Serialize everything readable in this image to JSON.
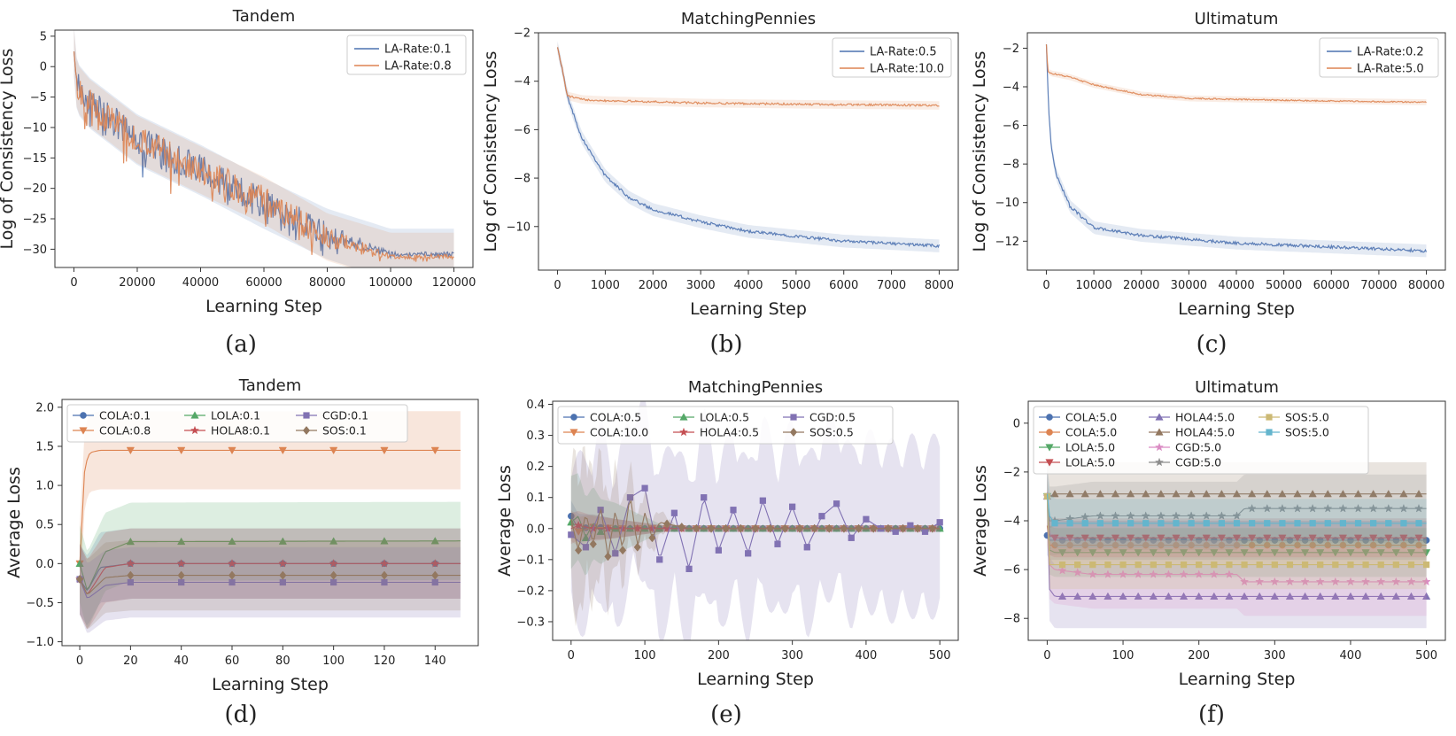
{
  "colors": {
    "blue": "#4c72b0",
    "orange": "#dd8452",
    "green": "#55a868",
    "red": "#c44e52",
    "purple": "#8172b3",
    "brown": "#937860",
    "pink": "#da8bc3",
    "gray": "#8c8c8c",
    "olive": "#ccb974",
    "cyan": "#64b5cd"
  },
  "chart_data": [
    {
      "id": "a",
      "type": "line",
      "caption": "(a)",
      "title": "Tandem",
      "xlabel": "Learning Step",
      "ylabel": "Log of Consistency Loss",
      "xlim": [
        -6000,
        126000
      ],
      "ylim": [
        -33,
        6
      ],
      "xticks": [
        0,
        20000,
        40000,
        60000,
        80000,
        100000,
        120000
      ],
      "xticklabels": [
        "0",
        "20000",
        "40000",
        "60000",
        "80000",
        "100000",
        "120000"
      ],
      "yticks": [
        5,
        0,
        -5,
        -10,
        -15,
        -20,
        -25,
        -30
      ],
      "yticklabels": [
        "5",
        "0",
        "−5",
        "−10",
        "−15",
        "−20",
        "−25",
        "−30"
      ],
      "legend": "top-right",
      "series": [
        {
          "name": "LA-Rate:0.1",
          "color": "blue",
          "noise": 3.2,
          "x": [
            0,
            1000,
            5000,
            20000,
            40000,
            60000,
            80000,
            100000,
            120000
          ],
          "y": [
            2.5,
            -3.5,
            -6,
            -12,
            -17,
            -22.5,
            -27.5,
            -30.8,
            -30.8
          ]
        },
        {
          "name": "LA-Rate:0.8",
          "color": "orange",
          "noise": 3.0,
          "x": [
            0,
            1000,
            5000,
            20000,
            40000,
            60000,
            80000,
            100000,
            120000
          ],
          "y": [
            2.5,
            -3.5,
            -6,
            -12,
            -17,
            -22,
            -28,
            -31.2,
            -31.2
          ]
        }
      ]
    },
    {
      "id": "b",
      "type": "line",
      "caption": "(b)",
      "title": "MatchingPennies",
      "xlabel": "Learning Step",
      "ylabel": "Log of Consistency Loss",
      "xlim": [
        -400,
        8400
      ],
      "ylim": [
        -11.8,
        -2
      ],
      "xticks": [
        0,
        1000,
        2000,
        3000,
        4000,
        5000,
        6000,
        7000,
        8000
      ],
      "xticklabels": [
        "0",
        "1000",
        "2000",
        "3000",
        "4000",
        "5000",
        "6000",
        "7000",
        "8000"
      ],
      "yticks": [
        -2,
        -4,
        -6,
        -8,
        -10
      ],
      "yticklabels": [
        "−2",
        "−4",
        "−6",
        "−8",
        "−10"
      ],
      "legend": "top-right",
      "series": [
        {
          "name": "LA-Rate:0.5",
          "color": "blue",
          "noise": 0.12,
          "x": [
            0,
            100,
            200,
            500,
            1000,
            1500,
            2000,
            3000,
            4000,
            5000,
            6000,
            7000,
            8000
          ],
          "y": [
            -2.6,
            -3.5,
            -4.6,
            -6.3,
            -7.9,
            -8.8,
            -9.3,
            -9.8,
            -10.2,
            -10.4,
            -10.6,
            -10.7,
            -10.8
          ]
        },
        {
          "name": "LA-Rate:10.0",
          "color": "orange",
          "noise": 0.08,
          "x": [
            0,
            100,
            200,
            500,
            1000,
            3000,
            5000,
            8000
          ],
          "y": [
            -2.6,
            -3.5,
            -4.6,
            -4.75,
            -4.8,
            -4.9,
            -4.95,
            -5.0
          ]
        }
      ]
    },
    {
      "id": "c",
      "type": "line",
      "caption": "(c)",
      "title": "Ultimatum",
      "xlabel": "Learning Step",
      "ylabel": "Log of Consistency Loss",
      "xlim": [
        -4000,
        84000
      ],
      "ylim": [
        -13.5,
        -1.2
      ],
      "xticks": [
        0,
        10000,
        20000,
        30000,
        40000,
        50000,
        60000,
        70000,
        80000
      ],
      "xticklabels": [
        "0",
        "10000",
        "20000",
        "30000",
        "40000",
        "50000",
        "60000",
        "70000",
        "80000"
      ],
      "yticks": [
        -2,
        -4,
        -6,
        -8,
        -10,
        -12
      ],
      "yticklabels": [
        "−2",
        "−4",
        "−6",
        "−8",
        "−10",
        "−12"
      ],
      "legend": "top-right",
      "series": [
        {
          "name": "LA-Rate:0.2",
          "color": "blue",
          "noise": 0.15,
          "x": [
            0,
            200,
            500,
            1000,
            2000,
            5000,
            10000,
            20000,
            40000,
            60000,
            80000
          ],
          "y": [
            -1.8,
            -3.2,
            -5.2,
            -7,
            -8.5,
            -10.2,
            -11.3,
            -11.7,
            -12.1,
            -12.3,
            -12.5
          ]
        },
        {
          "name": "LA-Rate:5.0",
          "color": "orange",
          "noise": 0.07,
          "x": [
            0,
            300,
            1000,
            5000,
            10000,
            20000,
            30000,
            50000,
            80000
          ],
          "y": [
            -1.8,
            -3.2,
            -3.3,
            -3.5,
            -3.9,
            -4.4,
            -4.6,
            -4.7,
            -4.8
          ]
        }
      ]
    },
    {
      "id": "d",
      "type": "line",
      "caption": "(d)",
      "title": "Tandem",
      "xlabel": "Learning Step",
      "ylabel": "Average Loss",
      "xlim": [
        -7,
        157
      ],
      "ylim": [
        -1.05,
        2.1
      ],
      "xticks": [
        0,
        20,
        40,
        60,
        80,
        100,
        120,
        140
      ],
      "xticklabels": [
        "0",
        "20",
        "40",
        "60",
        "80",
        "100",
        "120",
        "140"
      ],
      "yticks": [
        -1.0,
        -0.5,
        0.0,
        0.5,
        1.0,
        1.5,
        2.0
      ],
      "yticklabels": [
        "−1.0",
        "−0.5",
        "0.0",
        "0.5",
        "1.0",
        "1.5",
        "2.0"
      ],
      "legend": "top-left",
      "legend_cols": 3,
      "series": [
        {
          "name": "COLA:0.1",
          "color": "blue",
          "marker": "circle",
          "x": [
            0,
            3,
            8,
            20,
            150
          ],
          "y": [
            -0.2,
            -0.35,
            -0.05,
            0.0,
            0.0
          ],
          "band": [
            0.45,
            0.45
          ]
        },
        {
          "name": "COLA:0.8",
          "color": "orange",
          "marker": "triangle-down",
          "x": [
            0,
            1,
            2,
            4,
            8,
            20,
            150
          ],
          "y": [
            0.0,
            0.6,
            1.25,
            1.42,
            1.45,
            1.45,
            1.45
          ],
          "band": [
            0.5,
            0.5
          ]
        },
        {
          "name": "LOLA:0.1",
          "color": "green",
          "marker": "triangle-up",
          "x": [
            0,
            3,
            10,
            20,
            150
          ],
          "y": [
            0.0,
            -0.35,
            0.15,
            0.28,
            0.29
          ],
          "band": [
            0.5,
            0.5
          ]
        },
        {
          "name": "HOLA8:0.1",
          "color": "red",
          "marker": "star",
          "x": [
            0,
            3,
            10,
            20,
            150
          ],
          "y": [
            -0.2,
            -0.4,
            -0.05,
            0.0,
            0.0
          ],
          "band": [
            0.45,
            0.45
          ]
        },
        {
          "name": "CGD:0.1",
          "color": "purple",
          "marker": "square",
          "x": [
            0,
            3,
            10,
            20,
            150
          ],
          "y": [
            -0.2,
            -0.45,
            -0.28,
            -0.24,
            -0.24
          ],
          "band": [
            0.45,
            0.45
          ]
        },
        {
          "name": "SOS:0.1",
          "color": "brown",
          "marker": "diamond",
          "x": [
            0,
            3,
            10,
            20,
            150
          ],
          "y": [
            -0.2,
            -0.4,
            -0.18,
            -0.15,
            -0.15
          ],
          "band": [
            0.45,
            0.45
          ]
        }
      ]
    },
    {
      "id": "e",
      "type": "line",
      "caption": "(e)",
      "title": "MatchingPennies",
      "xlabel": "Learning Step",
      "ylabel": "Average Loss",
      "xlim": [
        -25,
        525
      ],
      "ylim": [
        -0.36,
        0.41
      ],
      "xticks": [
        0,
        100,
        200,
        300,
        400,
        500
      ],
      "xticklabels": [
        "0",
        "100",
        "200",
        "300",
        "400",
        "500"
      ],
      "yticks": [
        -0.3,
        -0.2,
        -0.1,
        0.0,
        0.1,
        0.2,
        0.3,
        0.4
      ],
      "yticklabels": [
        "−0.3",
        "−0.2",
        "−0.1",
        "0.0",
        "0.1",
        "0.2",
        "0.3",
        "0.4"
      ],
      "legend": "top-left",
      "legend_cols": 3,
      "series": [
        {
          "name": "COLA:0.5",
          "color": "blue",
          "marker": "circle",
          "x": [
            0,
            10,
            30,
            60,
            500
          ],
          "y": [
            0.04,
            0.0,
            0.005,
            0.0,
            0.0
          ],
          "band": [
            0.05,
            0.01
          ]
        },
        {
          "name": "COLA:10.0",
          "color": "orange",
          "marker": "triangle-down",
          "x": [
            0,
            10,
            30,
            60,
            500
          ],
          "y": [
            0.01,
            -0.01,
            0.005,
            0.0,
            0.0
          ],
          "band": [
            0.05,
            0.01
          ]
        },
        {
          "name": "LOLA:0.5",
          "color": "green",
          "marker": "triangle-up",
          "x": [
            0,
            10,
            20,
            30,
            40,
            60,
            500
          ],
          "y": [
            0.02,
            0.04,
            -0.03,
            0.02,
            -0.01,
            0.0,
            0.0
          ],
          "band": [
            0.15,
            0.01
          ]
        },
        {
          "name": "HOLA4:0.5",
          "color": "red",
          "marker": "star",
          "x": [
            0,
            10,
            30,
            60,
            500
          ],
          "y": [
            0.0,
            0.01,
            0.0,
            0.0,
            0.0
          ],
          "band": [
            0.05,
            0.01
          ]
        },
        {
          "name": "CGD:0.5",
          "color": "purple",
          "marker": "square",
          "x": [
            0,
            20,
            40,
            60,
            80,
            100,
            120,
            140,
            160,
            180,
            200,
            220,
            240,
            260,
            280,
            300,
            320,
            340,
            360,
            380,
            400,
            420,
            440,
            460,
            480,
            500
          ],
          "y": [
            -0.02,
            -0.06,
            0.06,
            -0.08,
            0.1,
            0.13,
            -0.1,
            0.05,
            -0.13,
            0.1,
            -0.07,
            0.06,
            -0.08,
            0.09,
            -0.05,
            0.07,
            -0.06,
            0.04,
            0.08,
            -0.03,
            0.03,
            0.0,
            -0.01,
            0.01,
            -0.01,
            0.02
          ],
          "band": [
            0.3,
            0.2
          ]
        },
        {
          "name": "SOS:0.5",
          "color": "brown",
          "marker": "diamond",
          "x": [
            0,
            10,
            20,
            30,
            40,
            50,
            60,
            70,
            80,
            90,
            100,
            110,
            120,
            140,
            160,
            500
          ],
          "y": [
            0.03,
            -0.07,
            0.05,
            -0.05,
            0.07,
            -0.09,
            0.06,
            -0.07,
            0.11,
            -0.06,
            0.05,
            -0.03,
            0.02,
            0.01,
            0.0,
            0.0
          ],
          "band": [
            0.3,
            0.01
          ]
        }
      ]
    },
    {
      "id": "f",
      "type": "line",
      "caption": "(f)",
      "title": "Ultimatum",
      "xlabel": "Learning Step",
      "ylabel": "Average Loss",
      "xlim": [
        -25,
        525
      ],
      "ylim": [
        -8.9,
        0.9
      ],
      "xticks": [
        0,
        100,
        200,
        300,
        400,
        500
      ],
      "xticklabels": [
        "0",
        "100",
        "200",
        "300",
        "400",
        "500"
      ],
      "yticks": [
        0,
        -2,
        -4,
        -6,
        -8
      ],
      "yticklabels": [
        "0",
        "−2",
        "−4",
        "−6",
        "−8"
      ],
      "legend": "top-left",
      "legend_cols": 3,
      "series": [
        {
          "name": "COLA:5.0",
          "color": "blue",
          "marker": "circle",
          "x": [
            0,
            3,
            10,
            500
          ],
          "y": [
            -4.6,
            -4.8,
            -4.8,
            -4.8
          ],
          "band": [
            0.8,
            0.8
          ]
        },
        {
          "name": "COLA:5.0",
          "color": "orange",
          "marker": "circle",
          "x": [
            0,
            3,
            10,
            500
          ],
          "y": [
            -4.2,
            -5.0,
            -5.0,
            -5.0
          ],
          "band": [
            0.8,
            0.8
          ]
        },
        {
          "name": "LOLA:5.0",
          "color": "green",
          "marker": "triangle-down",
          "x": [
            0,
            3,
            10,
            500
          ],
          "y": [
            -3.0,
            -5.2,
            -5.3,
            -5.3
          ],
          "band": [
            1.0,
            1.0
          ]
        },
        {
          "name": "LOLA:5.0",
          "color": "red",
          "marker": "triangle-down",
          "x": [
            0,
            3,
            10,
            500
          ],
          "y": [
            -3.0,
            -4.6,
            -4.7,
            -4.7
          ],
          "band": [
            0.8,
            0.8
          ]
        },
        {
          "name": "HOLA4:5.0",
          "color": "purple",
          "marker": "triangle-up",
          "x": [
            0,
            3,
            10,
            500
          ],
          "y": [
            -3.0,
            -6.8,
            -7.1,
            -7.1
          ],
          "band": [
            1.3,
            1.3
          ]
        },
        {
          "name": "HOLA4:5.0",
          "color": "brown",
          "marker": "triangle-up",
          "x": [
            0,
            3,
            10,
            500
          ],
          "y": [
            -3.0,
            -3.0,
            -2.9,
            -2.9
          ],
          "band": [
            1.3,
            1.3
          ]
        },
        {
          "name": "CGD:5.0",
          "color": "pink",
          "marker": "star",
          "x": [
            0,
            3,
            10,
            60,
            250,
            260,
            500
          ],
          "y": [
            -3.0,
            -5.8,
            -6.0,
            -6.2,
            -6.2,
            -6.5,
            -6.5
          ],
          "band": [
            1.4,
            1.4
          ]
        },
        {
          "name": "CGD:5.0",
          "color": "gray",
          "marker": "star",
          "x": [
            0,
            3,
            10,
            60,
            250,
            260,
            500
          ],
          "y": [
            -3.0,
            -4.0,
            -4.0,
            -3.8,
            -3.8,
            -3.5,
            -3.5
          ],
          "band": [
            1.4,
            1.4
          ]
        },
        {
          "name": "SOS:5.0",
          "color": "olive",
          "marker": "square",
          "x": [
            0,
            3,
            10,
            500
          ],
          "y": [
            -3.0,
            -5.8,
            -5.8,
            -5.8
          ],
          "band": [
            1.0,
            1.0
          ]
        },
        {
          "name": "SOS:5.0",
          "color": "cyan",
          "marker": "square",
          "x": [
            0,
            3,
            10,
            500
          ],
          "y": [
            -2.9,
            -3.8,
            -4.1,
            -4.1
          ],
          "band": [
            1.0,
            1.0
          ]
        }
      ]
    }
  ]
}
